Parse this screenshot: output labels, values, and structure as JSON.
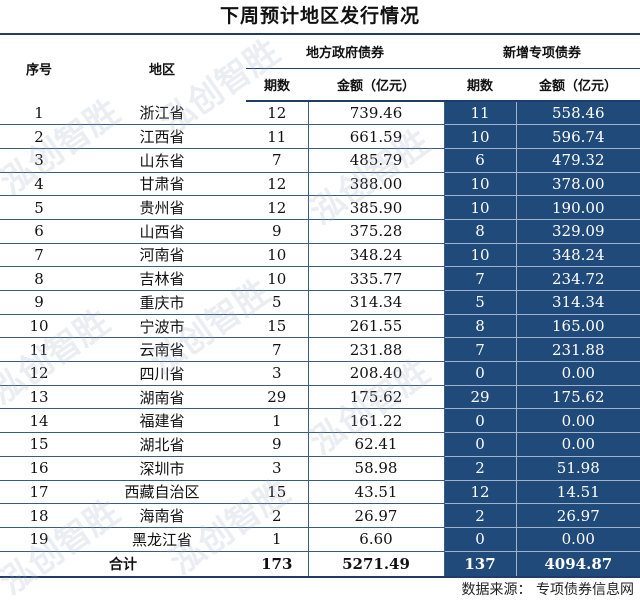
{
  "title": "下周预计地区发行情况",
  "headers": {
    "index": "序号",
    "region": "地区",
    "local_group": "地方政府债券",
    "special_group": "新增专项债券",
    "periods": "期数",
    "amount": "金额（亿元）"
  },
  "rows": [
    {
      "no": "1",
      "region": "浙江省",
      "lp": "12",
      "la": "739.46",
      "sp": "11",
      "sa": "558.46"
    },
    {
      "no": "2",
      "region": "江西省",
      "lp": "11",
      "la": "661.59",
      "sp": "10",
      "sa": "596.74"
    },
    {
      "no": "3",
      "region": "山东省",
      "lp": "7",
      "la": "485.79",
      "sp": "6",
      "sa": "479.32"
    },
    {
      "no": "4",
      "region": "甘肃省",
      "lp": "12",
      "la": "388.00",
      "sp": "10",
      "sa": "378.00"
    },
    {
      "no": "5",
      "region": "贵州省",
      "lp": "12",
      "la": "385.90",
      "sp": "10",
      "sa": "190.00"
    },
    {
      "no": "6",
      "region": "山西省",
      "lp": "9",
      "la": "375.28",
      "sp": "8",
      "sa": "329.09"
    },
    {
      "no": "7",
      "region": "河南省",
      "lp": "10",
      "la": "348.24",
      "sp": "10",
      "sa": "348.24"
    },
    {
      "no": "8",
      "region": "吉林省",
      "lp": "10",
      "la": "335.77",
      "sp": "7",
      "sa": "234.72"
    },
    {
      "no": "9",
      "region": "重庆市",
      "lp": "5",
      "la": "314.34",
      "sp": "5",
      "sa": "314.34"
    },
    {
      "no": "10",
      "region": "宁波市",
      "lp": "15",
      "la": "261.55",
      "sp": "8",
      "sa": "165.00"
    },
    {
      "no": "11",
      "region": "云南省",
      "lp": "7",
      "la": "231.88",
      "sp": "7",
      "sa": "231.88"
    },
    {
      "no": "12",
      "region": "四川省",
      "lp": "3",
      "la": "208.40",
      "sp": "0",
      "sa": "0.00"
    },
    {
      "no": "13",
      "region": "湖南省",
      "lp": "29",
      "la": "175.62",
      "sp": "29",
      "sa": "175.62"
    },
    {
      "no": "14",
      "region": "福建省",
      "lp": "1",
      "la": "161.22",
      "sp": "0",
      "sa": "0.00"
    },
    {
      "no": "15",
      "region": "湖北省",
      "lp": "9",
      "la": "62.41",
      "sp": "0",
      "sa": "0.00"
    },
    {
      "no": "16",
      "region": "深圳市",
      "lp": "3",
      "la": "58.98",
      "sp": "2",
      "sa": "51.98"
    },
    {
      "no": "17",
      "region": "西藏自治区",
      "lp": "15",
      "la": "43.51",
      "sp": "12",
      "sa": "14.51"
    },
    {
      "no": "18",
      "region": "海南省",
      "lp": "2",
      "la": "26.97",
      "sp": "2",
      "sa": "26.97"
    },
    {
      "no": "19",
      "region": "黑龙江省",
      "lp": "1",
      "la": "6.60",
      "sp": "0",
      "sa": "0.00"
    }
  ],
  "total": {
    "label": "合计",
    "lp": "173",
    "la": "5271.49",
    "sp": "137",
    "sa": "4094.87"
  },
  "source": "数据来源：  专项债券信息网",
  "watermark": "泓创智胜",
  "colors": {
    "highlight": "#1f4a7a",
    "rule": "#1e3d6b"
  }
}
